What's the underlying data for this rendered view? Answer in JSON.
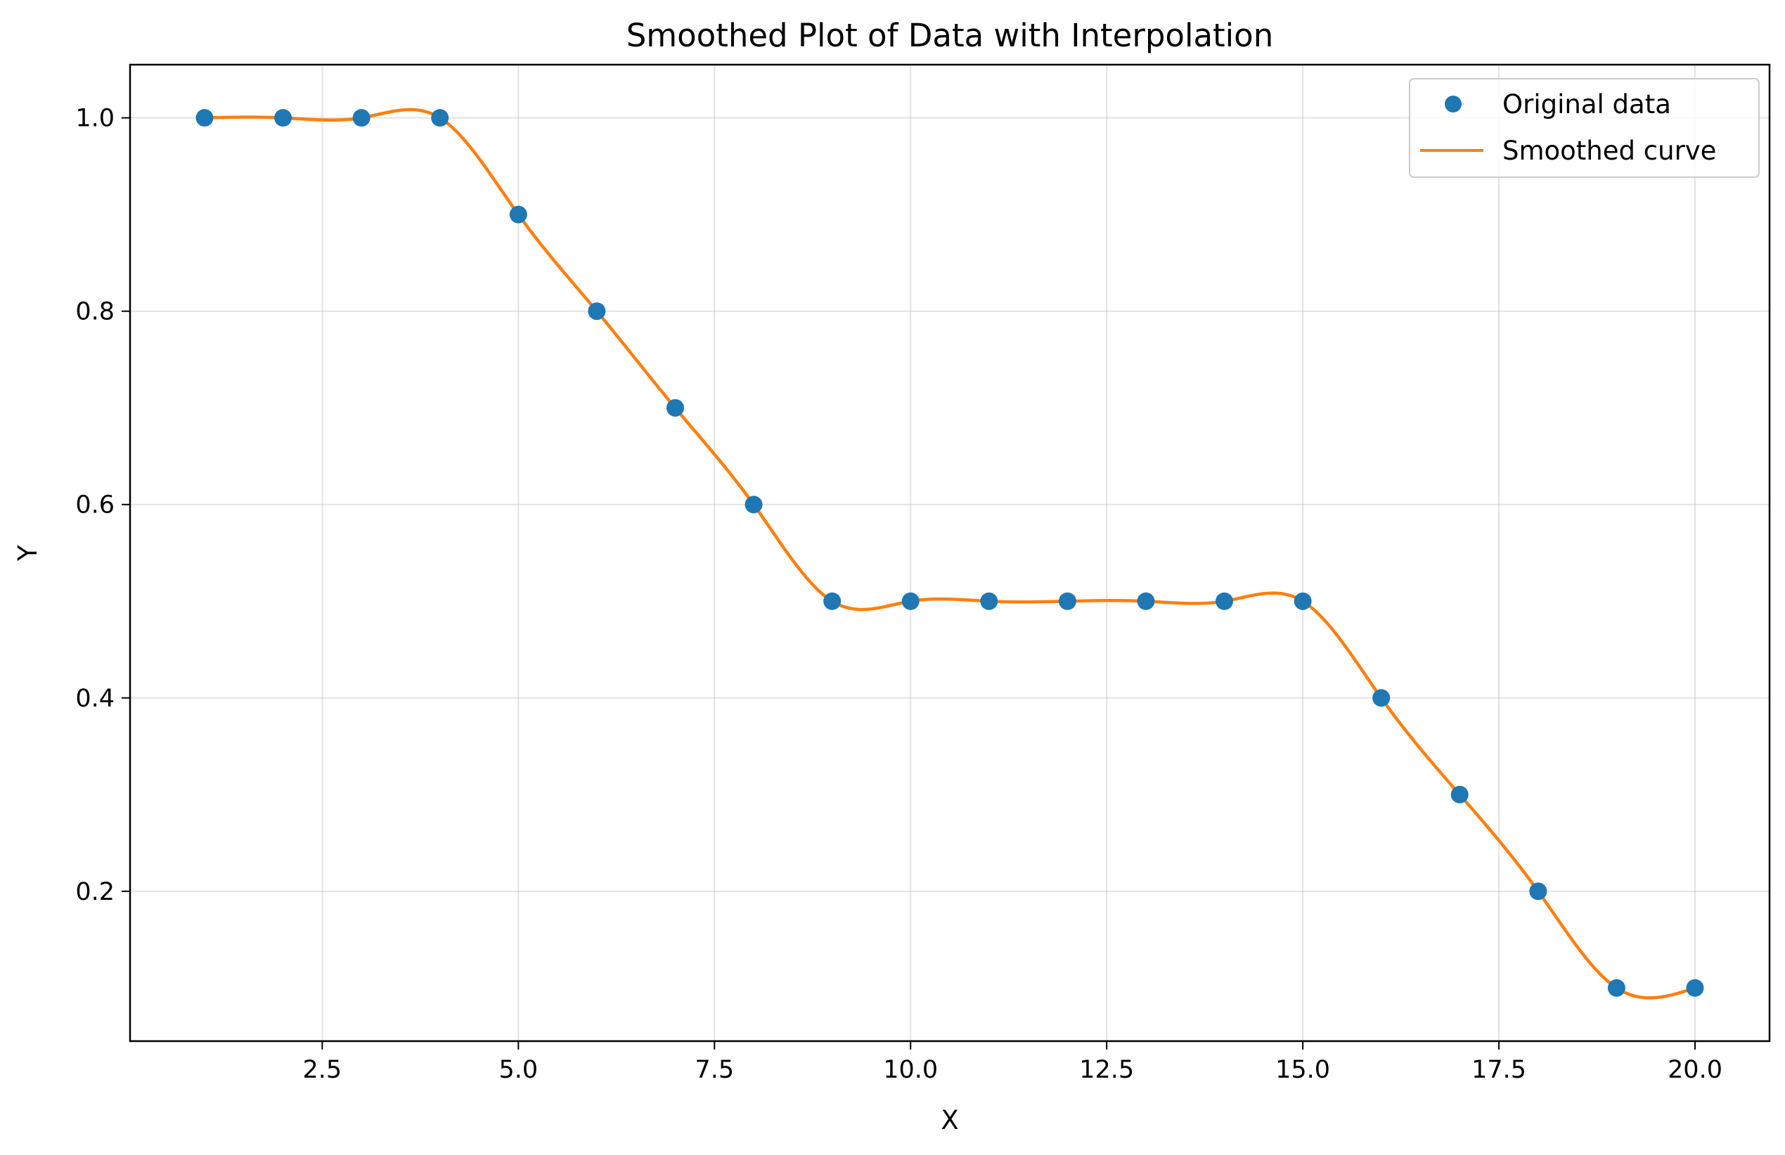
{
  "chart_data": {
    "type": "line",
    "title": "Smoothed Plot of Data with Interpolation",
    "xlabel": "X",
    "ylabel": "Y",
    "xlim": [
      0.05,
      20.95
    ],
    "ylim": [
      0.045,
      1.055
    ],
    "xticks": [
      2.5,
      5.0,
      7.5,
      10.0,
      12.5,
      15.0,
      17.5,
      20.0
    ],
    "xtick_labels": [
      "2.5",
      "5.0",
      "7.5",
      "10.0",
      "12.5",
      "15.0",
      "17.5",
      "20.0"
    ],
    "yticks": [
      0.2,
      0.4,
      0.6,
      0.8,
      1.0
    ],
    "ytick_labels": [
      "0.2",
      "0.4",
      "0.6",
      "0.8",
      "1.0"
    ],
    "grid": true,
    "legend_position": "top-right",
    "series": [
      {
        "name": "Original data",
        "kind": "scatter",
        "color": "#1f77b4",
        "x": [
          1,
          2,
          3,
          4,
          5,
          6,
          7,
          8,
          9,
          10,
          11,
          12,
          13,
          14,
          15,
          16,
          17,
          18,
          19,
          20
        ],
        "y": [
          1.0,
          1.0,
          1.0,
          1.0,
          0.9,
          0.8,
          0.7,
          0.6,
          0.5,
          0.5,
          0.5,
          0.5,
          0.5,
          0.5,
          0.5,
          0.4,
          0.3,
          0.2,
          0.1,
          0.1
        ]
      },
      {
        "name": "Smoothed curve",
        "kind": "line",
        "color": "#ff7f0e",
        "x": [
          1,
          2,
          3,
          4,
          5,
          6,
          7,
          8,
          9,
          10,
          11,
          12,
          13,
          14,
          15,
          16,
          17,
          18,
          19,
          20
        ],
        "y": [
          1.0,
          1.0,
          1.0,
          1.0,
          0.9,
          0.8,
          0.7,
          0.6,
          0.5,
          0.5,
          0.5,
          0.5,
          0.5,
          0.5,
          0.5,
          0.4,
          0.3,
          0.2,
          0.1,
          0.1
        ]
      }
    ]
  }
}
